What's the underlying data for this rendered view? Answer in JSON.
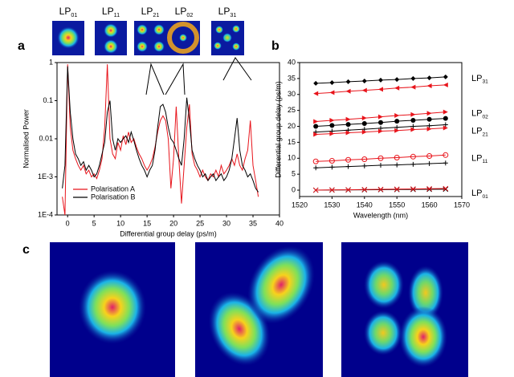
{
  "figure": {
    "panel_labels": [
      "a",
      "b",
      "c"
    ],
    "mode_images": [
      {
        "main": "LP",
        "sub": "01"
      },
      {
        "main": "LP",
        "sub": "11"
      },
      {
        "main": "LP",
        "sub": "21"
      },
      {
        "main": "LP",
        "sub": "02"
      },
      {
        "main": "LP",
        "sub": "31"
      }
    ]
  },
  "chart_data": [
    {
      "type": "line",
      "y_scale": "log",
      "x_label": "Differential group delay (ps/m)",
      "y_label": "Normalised Power",
      "xlim": [
        -2,
        40
      ],
      "xticks": [
        0,
        5,
        10,
        15,
        20,
        25,
        30,
        35,
        40
      ],
      "ylim": [
        0.0001,
        1
      ],
      "yticks": [
        {
          "value": 0.0001,
          "label": "1E-4"
        },
        {
          "value": 0.001,
          "label": "1E-3"
        },
        0.01,
        0.1,
        1
      ],
      "legend": "lower-left",
      "x": [
        -1,
        -0.5,
        0,
        0.5,
        1,
        1.5,
        2,
        2.5,
        3,
        3.5,
        4,
        4.5,
        5,
        5.5,
        6,
        6.5,
        7,
        7.5,
        8,
        8.5,
        9,
        9.5,
        10,
        10.5,
        11,
        11.5,
        12,
        12.5,
        13,
        13.5,
        14,
        14.5,
        15,
        15.5,
        16,
        16.5,
        17,
        17.5,
        18,
        18.5,
        19,
        19.5,
        20,
        20.5,
        21,
        21.5,
        22,
        22.5,
        23,
        23.5,
        24,
        24.5,
        25,
        25.5,
        26,
        26.5,
        27,
        27.5,
        28,
        28.5,
        29,
        29.5,
        30,
        30.5,
        31,
        31.5,
        32,
        32.5,
        33,
        33.5,
        34,
        34.5,
        35,
        35.5,
        36
      ],
      "series": [
        {
          "name": "Polarisation A",
          "color": "#e8141b",
          "values": [
            0.0003,
            0.0001,
            0.9,
            0.02,
            0.005,
            0.003,
            0.002,
            0.0015,
            0.002,
            0.0012,
            0.0015,
            0.001,
            0.0012,
            0.0009,
            0.0015,
            0.003,
            0.02,
            0.9,
            0.01,
            0.004,
            0.003,
            0.008,
            0.005,
            0.012,
            0.007,
            0.015,
            0.008,
            0.01,
            0.006,
            0.004,
            0.003,
            0.002,
            0.0015,
            0.002,
            0.003,
            0.006,
            0.015,
            0.03,
            0.04,
            0.03,
            0.01,
            0.0005,
            0.003,
            0.07,
            0.003,
            0.0002,
            0.002,
            0.02,
            0.08,
            0.004,
            0.002,
            0.0015,
            0.001,
            0.0015,
            0.001,
            0.0008,
            0.0012,
            0.001,
            0.0015,
            0.001,
            0.002,
            0.0012,
            0.0015,
            0.002,
            0.003,
            0.002,
            0.004,
            0.002,
            0.0015,
            0.003,
            0.005,
            0.03,
            0.002,
            0.0008,
            0.0003
          ]
        },
        {
          "name": "Polarisation B",
          "color": "#000000",
          "values": [
            0.0005,
            0.002,
            0.8,
            0.05,
            0.01,
            0.004,
            0.003,
            0.002,
            0.0025,
            0.0015,
            0.002,
            0.0015,
            0.001,
            0.0012,
            0.002,
            0.004,
            0.008,
            0.05,
            0.1,
            0.01,
            0.005,
            0.01,
            0.008,
            0.01,
            0.012,
            0.008,
            0.015,
            0.009,
            0.005,
            0.003,
            0.002,
            0.0015,
            0.001,
            0.0015,
            0.002,
            0.005,
            0.02,
            0.07,
            0.08,
            0.05,
            0.02,
            0.01,
            0.008,
            0.005,
            0.003,
            0.002,
            0.01,
            0.12,
            0.03,
            0.005,
            0.003,
            0.002,
            0.0015,
            0.001,
            0.0012,
            0.0008,
            0.001,
            0.0012,
            0.0008,
            0.001,
            0.0012,
            0.0008,
            0.001,
            0.0015,
            0.003,
            0.01,
            0.035,
            0.005,
            0.002,
            0.0015,
            0.001,
            0.0012,
            0.0008,
            0.0005,
            0.0004
          ]
        }
      ]
    },
    {
      "type": "line",
      "x_label": "Wavelength (nm)",
      "y_label": "Differential group delay (ps/m)",
      "xlim": [
        1520,
        1570
      ],
      "xticks": [
        1520,
        1530,
        1540,
        1550,
        1560,
        1570
      ],
      "ylim": [
        -2,
        40
      ],
      "yticks": [
        0,
        5,
        10,
        15,
        20,
        25,
        30,
        35,
        40
      ],
      "annotations": [
        {
          "main": "LP",
          "sub": "31",
          "y": 35
        },
        {
          "main": "LP",
          "sub": "02",
          "y": 24
        },
        {
          "main": "LP",
          "sub": "21",
          "y": 18.5
        },
        {
          "main": "LP",
          "sub": "11",
          "y": 10
        },
        {
          "main": "LP",
          "sub": "01",
          "y": -1
        }
      ],
      "x": [
        1525,
        1530,
        1535,
        1540,
        1545,
        1550,
        1555,
        1560,
        1565
      ],
      "series": [
        {
          "color": "#000000",
          "marker": "diamond",
          "values": [
            33.5,
            33.7,
            34,
            34.2,
            34.5,
            34.7,
            35,
            35.2,
            35.5
          ]
        },
        {
          "color": "#e8141b",
          "marker": "triangle-left",
          "values": [
            30.3,
            30.6,
            31,
            31.3,
            31.6,
            32,
            32.3,
            32.7,
            33
          ]
        },
        {
          "color": "#e8141b",
          "marker": "triangle-right",
          "values": [
            21.5,
            21.9,
            22.2,
            22.6,
            23,
            23.4,
            23.7,
            24.1,
            24.5
          ]
        },
        {
          "color": "#000000",
          "marker": "circle",
          "values": [
            20,
            20.3,
            20.6,
            20.9,
            21.2,
            21.6,
            21.9,
            22.2,
            22.5
          ]
        },
        {
          "color": "#000000",
          "marker": "plus",
          "values": [
            18.2,
            18.5,
            18.8,
            19.1,
            19.4,
            19.7,
            20,
            20.2,
            20.5
          ]
        },
        {
          "color": "#e8141b",
          "marker": "triangle-right",
          "values": [
            17.5,
            17.7,
            18,
            18.2,
            18.5,
            18.7,
            19,
            19.2,
            19.5
          ]
        },
        {
          "color": "#e8141b",
          "marker": "circle-open",
          "values": [
            9,
            9.2,
            9.5,
            9.7,
            10,
            10.2,
            10.5,
            10.7,
            11
          ]
        },
        {
          "color": "#000000",
          "marker": "plus",
          "values": [
            7,
            7.2,
            7.4,
            7.6,
            7.8,
            7.9,
            8.1,
            8.3,
            8.5
          ]
        },
        {
          "color": "#000000",
          "marker": "x",
          "values": [
            0,
            0.04,
            0.08,
            0.11,
            0.15,
            0.19,
            0.22,
            0.26,
            0.3
          ]
        },
        {
          "color": "#e8141b",
          "marker": "x",
          "values": [
            0,
            0.06,
            0.12,
            0.19,
            0.25,
            0.31,
            0.37,
            0.44,
            0.5
          ]
        }
      ]
    }
  ]
}
